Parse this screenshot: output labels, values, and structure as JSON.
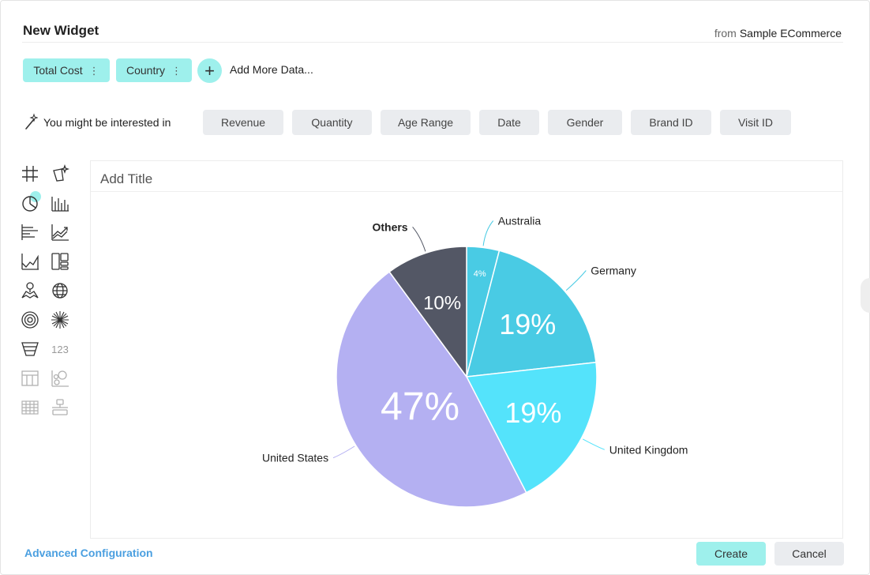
{
  "header": {
    "title": "New Widget",
    "from_label": "from",
    "source_name": "Sample ECommerce"
  },
  "data_pills": [
    {
      "label": "Total Cost",
      "menu": "⋮"
    },
    {
      "label": "Country",
      "menu": "⋮"
    }
  ],
  "add_more": {
    "icon": "+",
    "label": "Add More Data..."
  },
  "suggestions": {
    "intro": "You might be interested in",
    "items": [
      "Revenue",
      "Quantity",
      "Age Range",
      "Date",
      "Gender",
      "Brand ID",
      "Visit ID"
    ]
  },
  "chart_types": {
    "selected": "pie-chart-icon",
    "number_label": "123"
  },
  "panel": {
    "title_placeholder": "Add Title"
  },
  "chart_data": {
    "type": "pie",
    "title": "",
    "slices": [
      {
        "label": "Australia",
        "value": 4,
        "value_label": "4%",
        "color": "#49cbe4"
      },
      {
        "label": "Germany",
        "value": 19,
        "value_label": "19%",
        "color": "#49cbe4"
      },
      {
        "label": "United Kingdom",
        "value": 19,
        "value_label": "19%",
        "color": "#54e3fb"
      },
      {
        "label": "United States",
        "value": 47,
        "value_label": "47%",
        "color": "#b4b0f2"
      },
      {
        "label": "Others",
        "value": 10,
        "value_label": "10%",
        "color": "#535765"
      }
    ]
  },
  "footer": {
    "advanced_label": "Advanced Configuration",
    "create_label": "Create",
    "cancel_label": "Cancel"
  },
  "colors": {
    "accent": "#9ef0ec",
    "link": "#4a9fe0",
    "chip": "#eaecef"
  }
}
